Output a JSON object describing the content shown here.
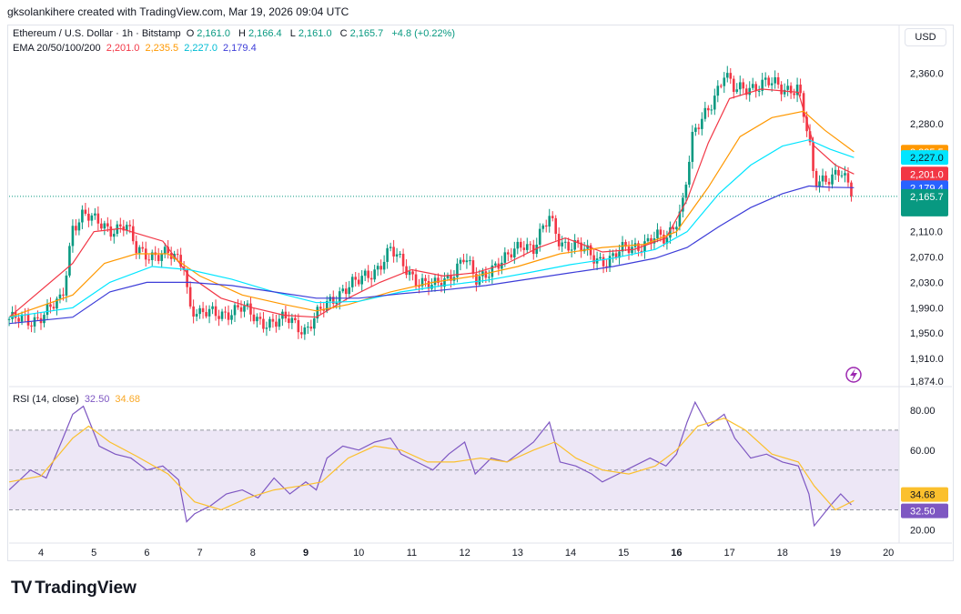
{
  "credit": "gksolankihere created with TradingView.com, Mar 19, 2026 09:04 UTC",
  "header": {
    "symbol": "Ethereum / U.S. Dollar · 1h · Bitstamp",
    "o_label": "O",
    "o_value": "2,161.0",
    "h_label": "H",
    "h_value": "2,166.4",
    "l_label": "L",
    "l_value": "2,161.0",
    "c_label": "C",
    "c_value": "2,165.7",
    "change": "+4.8 (+0.22%)",
    "ema_label": "EMA 20/50/100/200",
    "ema20": "2,201.0",
    "ema50": "2,235.5",
    "ema100": "2,227.0",
    "ema200": "2,179.4",
    "currency": "USD"
  },
  "rsi_header": {
    "label": "RSI (14, close)",
    "rsi": "32.50",
    "ma": "34.68"
  },
  "logo": {
    "mark": "TV",
    "text": "TradingView"
  },
  "colors": {
    "up": "#089981",
    "down": "#f23645",
    "ema20": "#f23645",
    "ema50": "#ff9800",
    "ema100": "#00e5ff",
    "ema200": "#3d3dd8",
    "rsi": "#7e57c2",
    "rsi_ma": "#fbc02d",
    "rsi_band": "#ede7f6",
    "price_label": "#089981",
    "ema50_label": "#ff9800",
    "ema100_label": "#00e5ff",
    "ema20_label": "#f23645",
    "ema200_label": "#2962ff"
  },
  "chart_data": [
    {
      "type": "candlestick",
      "title": "Ethereum / U.S. Dollar · 1h · Bitstamp",
      "x_ticks": [
        "4",
        "5",
        "6",
        "7",
        "8",
        "9",
        "10",
        "11",
        "12",
        "13",
        "14",
        "15",
        "16",
        "17",
        "18",
        "19",
        "20"
      ],
      "y_ticks": [
        "2,360.0",
        "2,280.0",
        "2,110.0",
        "2,070.0",
        "2,030.0",
        "1,990.0",
        "1,950.0",
        "1,910.0",
        "1,874.0"
      ],
      "y_tick_values": [
        2360,
        2280,
        2110,
        2070,
        2030,
        1990,
        1950,
        1910,
        1874
      ],
      "close_anchors": [
        [
          3.4,
          1972
        ],
        [
          3.8,
          1968
        ],
        [
          4.1,
          1985
        ],
        [
          4.4,
          2000
        ],
        [
          4.6,
          2120
        ],
        [
          4.8,
          2140
        ],
        [
          5.0,
          2125
        ],
        [
          5.3,
          2115
        ],
        [
          5.6,
          2120
        ],
        [
          5.8,
          2080
        ],
        [
          6.1,
          2075
        ],
        [
          6.4,
          2072
        ],
        [
          6.7,
          2060
        ],
        [
          6.8,
          1995
        ],
        [
          7.0,
          1978
        ],
        [
          7.4,
          1982
        ],
        [
          7.8,
          1988
        ],
        [
          8.1,
          1972
        ],
        [
          8.4,
          1965
        ],
        [
          8.7,
          1972
        ],
        [
          9.0,
          1955
        ],
        [
          9.4,
          1995
        ],
        [
          9.7,
          2020
        ],
        [
          10.0,
          2030
        ],
        [
          10.3,
          2050
        ],
        [
          10.6,
          2080
        ],
        [
          10.8,
          2060
        ],
        [
          11.1,
          2035
        ],
        [
          11.4,
          2020
        ],
        [
          11.7,
          2040
        ],
        [
          12.0,
          2070
        ],
        [
          12.2,
          2030
        ],
        [
          12.5,
          2055
        ],
        [
          12.8,
          2065
        ],
        [
          13.1,
          2095
        ],
        [
          13.3,
          2085
        ],
        [
          13.6,
          2130
        ],
        [
          13.8,
          2095
        ],
        [
          14.1,
          2088
        ],
        [
          14.4,
          2070
        ],
        [
          14.7,
          2065
        ],
        [
          15.0,
          2080
        ],
        [
          15.3,
          2090
        ],
        [
          15.6,
          2100
        ],
        [
          15.8,
          2095
        ],
        [
          16.1,
          2150
        ],
        [
          16.3,
          2255
        ],
        [
          16.6,
          2305
        ],
        [
          16.9,
          2360
        ],
        [
          17.1,
          2330
        ],
        [
          17.4,
          2340
        ],
        [
          17.7,
          2345
        ],
        [
          18.0,
          2335
        ],
        [
          18.3,
          2340
        ],
        [
          18.5,
          2250
        ],
        [
          18.6,
          2185
        ],
        [
          18.9,
          2200
        ],
        [
          19.1,
          2205
        ],
        [
          19.3,
          2166
        ]
      ],
      "ohlc_last": {
        "open": 2161.0,
        "high": 2166.4,
        "low": 2161.0,
        "close": 2165.7
      },
      "series": [
        {
          "name": "EMA 20",
          "last": 2201.0,
          "points": [
            [
              3.4,
              1975
            ],
            [
              4.6,
              2060
            ],
            [
              5.0,
              2110
            ],
            [
              5.5,
              2115
            ],
            [
              6.3,
              2095
            ],
            [
              6.8,
              2040
            ],
            [
              7.4,
              2005
            ],
            [
              8.0,
              1990
            ],
            [
              8.6,
              1978
            ],
            [
              9.2,
              1975
            ],
            [
              9.8,
              2005
            ],
            [
              10.4,
              2030
            ],
            [
              11.0,
              2050
            ],
            [
              11.6,
              2040
            ],
            [
              12.2,
              2045
            ],
            [
              12.8,
              2060
            ],
            [
              13.4,
              2085
            ],
            [
              13.9,
              2100
            ],
            [
              14.6,
              2078
            ],
            [
              15.2,
              2082
            ],
            [
              15.8,
              2100
            ],
            [
              16.2,
              2160
            ],
            [
              16.6,
              2250
            ],
            [
              17.0,
              2320
            ],
            [
              17.6,
              2335
            ],
            [
              18.3,
              2330
            ],
            [
              18.6,
              2245
            ],
            [
              19.0,
              2215
            ],
            [
              19.35,
              2201
            ]
          ]
        },
        {
          "name": "EMA 50",
          "last": 2235.5,
          "points": [
            [
              3.4,
              1975
            ],
            [
              4.6,
              2010
            ],
            [
              5.2,
              2060
            ],
            [
              5.8,
              2075
            ],
            [
              6.4,
              2075
            ],
            [
              7.0,
              2040
            ],
            [
              7.8,
              2010
            ],
            [
              8.6,
              1995
            ],
            [
              9.2,
              1985
            ],
            [
              9.8,
              1995
            ],
            [
              10.6,
              2015
            ],
            [
              11.4,
              2030
            ],
            [
              12.2,
              2040
            ],
            [
              13.0,
              2055
            ],
            [
              13.8,
              2075
            ],
            [
              14.6,
              2085
            ],
            [
              15.4,
              2090
            ],
            [
              16.0,
              2110
            ],
            [
              16.6,
              2180
            ],
            [
              17.2,
              2260
            ],
            [
              17.8,
              2290
            ],
            [
              18.4,
              2300
            ],
            [
              18.8,
              2270
            ],
            [
              19.35,
              2236
            ]
          ]
        },
        {
          "name": "EMA 100",
          "last": 2227.0,
          "points": [
            [
              3.4,
              1975
            ],
            [
              4.6,
              1990
            ],
            [
              5.3,
              2030
            ],
            [
              6.1,
              2055
            ],
            [
              6.8,
              2050
            ],
            [
              7.6,
              2035
            ],
            [
              8.4,
              2015
            ],
            [
              9.2,
              1998
            ],
            [
              10.0,
              2000
            ],
            [
              10.8,
              2015
            ],
            [
              11.6,
              2025
            ],
            [
              12.4,
              2033
            ],
            [
              13.2,
              2045
            ],
            [
              14.0,
              2058
            ],
            [
              14.8,
              2068
            ],
            [
              15.6,
              2082
            ],
            [
              16.2,
              2110
            ],
            [
              16.8,
              2170
            ],
            [
              17.4,
              2215
            ],
            [
              18.0,
              2245
            ],
            [
              18.5,
              2255
            ],
            [
              18.9,
              2240
            ],
            [
              19.35,
              2227
            ]
          ]
        },
        {
          "name": "EMA 200",
          "last": 2179.4,
          "points": [
            [
              3.4,
              1965
            ],
            [
              4.6,
              1975
            ],
            [
              5.3,
              2015
            ],
            [
              6.0,
              2030
            ],
            [
              6.8,
              2030
            ],
            [
              7.6,
              2025
            ],
            [
              8.4,
              2015
            ],
            [
              9.2,
              2005
            ],
            [
              10.0,
              2005
            ],
            [
              10.8,
              2012
            ],
            [
              11.6,
              2018
            ],
            [
              12.4,
              2025
            ],
            [
              13.2,
              2035
            ],
            [
              14.0,
              2045
            ],
            [
              14.8,
              2055
            ],
            [
              15.6,
              2068
            ],
            [
              16.2,
              2085
            ],
            [
              16.8,
              2118
            ],
            [
              17.4,
              2148
            ],
            [
              18.0,
              2170
            ],
            [
              18.5,
              2182
            ],
            [
              18.9,
              2180
            ],
            [
              19.35,
              2179.4
            ]
          ]
        }
      ]
    },
    {
      "type": "line",
      "title": "RSI (14, close)",
      "y_ticks": [
        "80.00",
        "60.00",
        "20.00"
      ],
      "y_tick_values": [
        80,
        60,
        20
      ],
      "band": [
        30,
        70
      ],
      "midline": 50,
      "series": [
        {
          "name": "RSI",
          "last": 32.5,
          "points": [
            [
              3.4,
              40
            ],
            [
              3.8,
              50
            ],
            [
              4.1,
              46
            ],
            [
              4.4,
              65
            ],
            [
              4.6,
              78
            ],
            [
              4.8,
              82
            ],
            [
              5.1,
              62
            ],
            [
              5.4,
              58
            ],
            [
              5.7,
              56
            ],
            [
              6.0,
              50
            ],
            [
              6.3,
              52
            ],
            [
              6.6,
              45
            ],
            [
              6.75,
              24
            ],
            [
              6.9,
              28
            ],
            [
              7.2,
              32
            ],
            [
              7.5,
              38
            ],
            [
              7.8,
              40
            ],
            [
              8.1,
              36
            ],
            [
              8.4,
              46
            ],
            [
              8.7,
              38
            ],
            [
              9.0,
              44
            ],
            [
              9.2,
              40
            ],
            [
              9.4,
              56
            ],
            [
              9.7,
              62
            ],
            [
              10.0,
              60
            ],
            [
              10.3,
              64
            ],
            [
              10.6,
              66
            ],
            [
              10.8,
              58
            ],
            [
              11.1,
              54
            ],
            [
              11.4,
              50
            ],
            [
              11.7,
              58
            ],
            [
              12.0,
              64
            ],
            [
              12.2,
              48
            ],
            [
              12.5,
              56
            ],
            [
              12.8,
              54
            ],
            [
              13.1,
              60
            ],
            [
              13.3,
              64
            ],
            [
              13.6,
              74
            ],
            [
              13.8,
              54
            ],
            [
              14.1,
              52
            ],
            [
              14.4,
              48
            ],
            [
              14.6,
              44
            ],
            [
              14.9,
              48
            ],
            [
              15.2,
              52
            ],
            [
              15.5,
              56
            ],
            [
              15.8,
              52
            ],
            [
              16.0,
              58
            ],
            [
              16.2,
              74
            ],
            [
              16.35,
              84
            ],
            [
              16.6,
              72
            ],
            [
              16.9,
              78
            ],
            [
              17.1,
              66
            ],
            [
              17.4,
              56
            ],
            [
              17.7,
              58
            ],
            [
              18.0,
              54
            ],
            [
              18.3,
              52
            ],
            [
              18.5,
              38
            ],
            [
              18.6,
              22
            ],
            [
              18.9,
              32
            ],
            [
              19.1,
              38
            ],
            [
              19.3,
              32.5
            ]
          ]
        },
        {
          "name": "RSI MA",
          "last": 34.68,
          "points": [
            [
              3.4,
              44
            ],
            [
              4.0,
              47
            ],
            [
              4.6,
              66
            ],
            [
              4.9,
              72
            ],
            [
              5.3,
              64
            ],
            [
              5.8,
              57
            ],
            [
              6.4,
              48
            ],
            [
              6.9,
              34
            ],
            [
              7.4,
              30
            ],
            [
              7.9,
              36
            ],
            [
              8.4,
              40
            ],
            [
              8.9,
              42
            ],
            [
              9.3,
              44
            ],
            [
              9.8,
              56
            ],
            [
              10.3,
              62
            ],
            [
              10.8,
              60
            ],
            [
              11.3,
              54
            ],
            [
              11.8,
              54
            ],
            [
              12.3,
              56
            ],
            [
              12.8,
              54
            ],
            [
              13.3,
              60
            ],
            [
              13.7,
              64
            ],
            [
              14.1,
              56
            ],
            [
              14.6,
              50
            ],
            [
              15.1,
              48
            ],
            [
              15.6,
              52
            ],
            [
              16.0,
              60
            ],
            [
              16.4,
              72
            ],
            [
              16.9,
              76
            ],
            [
              17.3,
              70
            ],
            [
              17.8,
              58
            ],
            [
              18.3,
              54
            ],
            [
              18.6,
              42
            ],
            [
              19.0,
              30
            ],
            [
              19.35,
              34.68
            ]
          ]
        }
      ]
    }
  ]
}
